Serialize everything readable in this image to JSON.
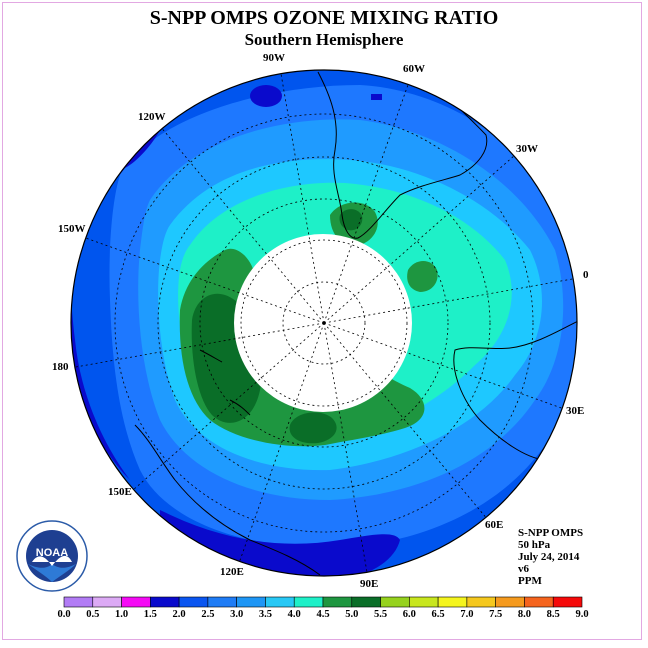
{
  "header": {
    "title": "S-NPP OMPS OZONE MIXING RATIO",
    "subtitle": "Southern Hemisphere"
  },
  "map": {
    "projection": "south-polar-stereographic",
    "longitude_labels": [
      "90W",
      "60W",
      "30W",
      "0",
      "30E",
      "60E",
      "90E",
      "120E",
      "150E",
      "180",
      "150W",
      "120W"
    ],
    "polar_night_mask": "white",
    "fill_colors": {
      "background_2_0": "#0055ee",
      "band_2_5": "#1e78ff",
      "band_3_0": "#1f9bff",
      "band_3_5": "#1ec8ff",
      "band_4_0": "#1ef0c8",
      "band_4_5": "#1e9640",
      "band_5_0": "#0a6e28"
    }
  },
  "info": {
    "product": "S-NPP OMPS",
    "level": "50 hPa",
    "date": "July 24, 2014",
    "version": "v6",
    "units": "PPM"
  },
  "colorbar": {
    "ticks": [
      "0.0",
      "0.5",
      "1.0",
      "1.5",
      "2.0",
      "2.5",
      "3.0",
      "3.5",
      "4.0",
      "4.5",
      "5.0",
      "5.5",
      "6.0",
      "6.5",
      "7.0",
      "7.5",
      "8.0",
      "8.5",
      "9.0"
    ],
    "colors": [
      "#b27cf5",
      "#dcaaf5",
      "#f50af5",
      "#0a0acc",
      "#0a55f0",
      "#1f7cf5",
      "#1e96f5",
      "#28c8f5",
      "#1ef0c8",
      "#1e9640",
      "#0a6e28",
      "#96d21e",
      "#c8e61e",
      "#f5f51e",
      "#f5c81e",
      "#f59a1e",
      "#f5641e",
      "#f50a0a",
      "#8c5032"
    ]
  },
  "logo": {
    "name": "NOAA",
    "ring_text": "NATIONAL OCEANIC AND ATMOSPHERIC ADMINISTRATION U.S. DEPARTMENT OF COMMERCE"
  }
}
